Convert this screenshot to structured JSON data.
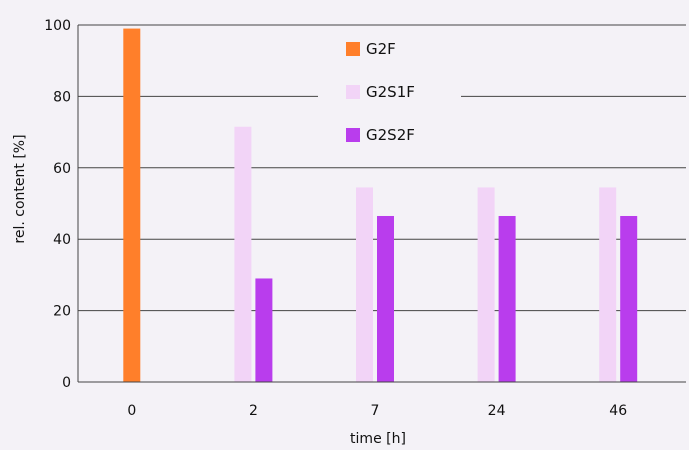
{
  "chart_data": {
    "type": "bar",
    "title": "",
    "xlabel": "time [h]",
    "ylabel": "rel. content [%]",
    "categories": [
      "0",
      "2",
      "7",
      "24",
      "46"
    ],
    "ylim": [
      0,
      100
    ],
    "yticks": [
      "0",
      "20",
      "40",
      "60",
      "80",
      "100"
    ],
    "grid": "horizontal",
    "legend_position": "top-center",
    "series": [
      {
        "name": "G2F",
        "color": "#ff7f2a",
        "values": [
          99,
          null,
          null,
          null,
          null
        ]
      },
      {
        "name": "G2S1F",
        "color": "#f2d4f7",
        "values": [
          null,
          71.5,
          54.5,
          54.5,
          54.5
        ]
      },
      {
        "name": "G2S2F",
        "color": "#b93ded",
        "values": [
          null,
          29,
          46.5,
          46.5,
          46.5
        ]
      }
    ]
  }
}
